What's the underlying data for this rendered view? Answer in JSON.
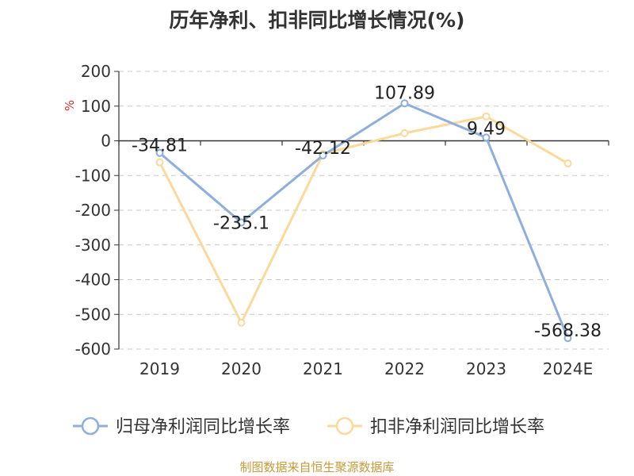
{
  "chart_data": {
    "type": "line",
    "title": "历年净利、扣非同比增长情况(%)",
    "ylabel": "%",
    "xlabel": "",
    "categories": [
      "2019",
      "2020",
      "2021",
      "2022",
      "2023",
      "2024E"
    ],
    "ylim": [
      -600,
      200
    ],
    "yticks": [
      200,
      100,
      0,
      -100,
      -200,
      -300,
      -400,
      -500,
      -600
    ],
    "grid": true,
    "legend_position": "bottom",
    "series": [
      {
        "name": "归母净利润同比增长率",
        "color": "#8eaedc",
        "values": [
          -34.81,
          -235.1,
          -42.12,
          107.89,
          9.49,
          -568.38
        ],
        "labels": [
          "-34.81",
          "-235.1",
          "-42.12",
          "107.89",
          "9.49",
          "-568.38"
        ]
      },
      {
        "name": "扣非净利润同比增长率",
        "color": "#fbd99a",
        "values": [
          -62,
          -524,
          -38,
          22,
          70,
          -65
        ]
      }
    ]
  },
  "source": "制图数据来自恒生聚源数据库"
}
